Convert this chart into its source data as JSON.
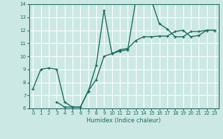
{
  "xlabel": "Humidex (Indice chaleur)",
  "xlim": [
    -0.5,
    23.5
  ],
  "ylim": [
    6,
    14
  ],
  "xticks": [
    0,
    1,
    2,
    3,
    4,
    5,
    6,
    7,
    8,
    9,
    10,
    11,
    12,
    13,
    14,
    15,
    16,
    17,
    18,
    19,
    20,
    21,
    22,
    23
  ],
  "yticks": [
    6,
    7,
    8,
    9,
    10,
    11,
    12,
    13,
    14
  ],
  "bg_color": "#cce8e4",
  "grid_color": "#ffffff",
  "line_color": "#1a6b60",
  "curve1_x": [
    0,
    1,
    2,
    3,
    4,
    5,
    6,
    7,
    8,
    9,
    10,
    11,
    12,
    13,
    14,
    15,
    16,
    17,
    18,
    19,
    20,
    21,
    22,
    23
  ],
  "curve1_y": [
    7.5,
    9.0,
    9.1,
    9.0,
    6.5,
    6.1,
    6.1,
    7.3,
    9.3,
    13.5,
    10.2,
    10.4,
    10.5,
    14.2,
    14.4,
    14.3,
    12.5,
    12.1,
    11.5,
    11.5,
    11.9,
    11.9,
    12.0,
    12.0
  ],
  "curve2_x": [
    3,
    4,
    5,
    6,
    7,
    8,
    9,
    10,
    11,
    12,
    13,
    14,
    15,
    16,
    17,
    18,
    19,
    20,
    21,
    22,
    23
  ],
  "curve2_y": [
    6.5,
    6.1,
    6.1,
    6.1,
    7.35,
    8.2,
    10.0,
    10.2,
    10.5,
    10.6,
    11.2,
    11.5,
    11.5,
    11.55,
    11.55,
    11.9,
    12.0,
    11.5,
    11.6,
    12.0,
    12.0
  ]
}
